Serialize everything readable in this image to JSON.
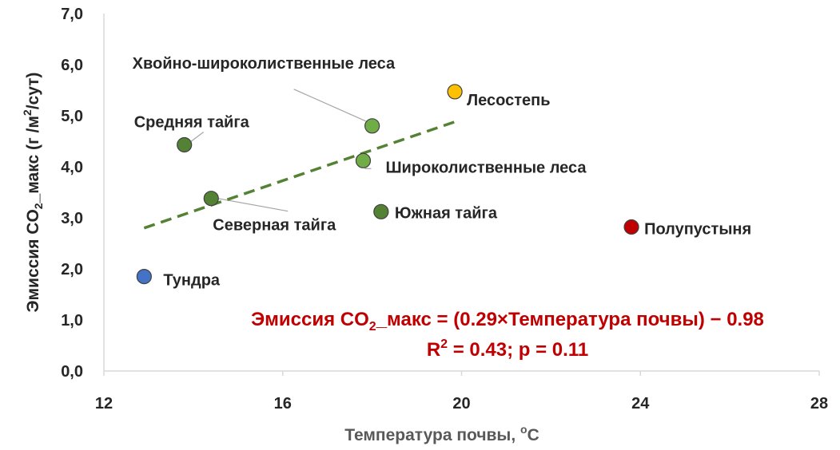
{
  "chart_data": {
    "type": "scatter",
    "xlabel_prefix": "Температура  почвы, ",
    "xlabel_unit_sup": "o",
    "xlabel_unit": "C",
    "ylabel_main": "Эмиссия CO",
    "ylabel_sub": "2",
    "ylabel_rest": "_макс  (г /м",
    "ylabel_sup": "2",
    "ylabel_end": "/сут)",
    "xlim": [
      12,
      28
    ],
    "ylim": [
      0,
      7
    ],
    "xticks": [
      12,
      16,
      20,
      24,
      28
    ],
    "yticks": [
      "0,0",
      "1,0",
      "2,0",
      "3,0",
      "4,0",
      "5,0",
      "6,0",
      "7,0"
    ],
    "grid": false,
    "points": [
      {
        "name": "Тундра",
        "x": 12.9,
        "y": 1.85,
        "color": "#4472c4"
      },
      {
        "name": "Средняя тайга",
        "x": 13.8,
        "y": 4.43,
        "color": "#548235"
      },
      {
        "name": "Северная тайга",
        "x": 14.4,
        "y": 3.38,
        "color": "#548235"
      },
      {
        "name": "Хвойно-широколиственные леса",
        "x": 18.0,
        "y": 4.8,
        "color": "#70ad47"
      },
      {
        "name": "Широколиственные леса",
        "x": 17.8,
        "y": 4.12,
        "color": "#70ad47"
      },
      {
        "name": "Южная тайга",
        "x": 18.2,
        "y": 3.12,
        "color": "#548235"
      },
      {
        "name": "Лесостепь",
        "x": 19.85,
        "y": 5.47,
        "color": "#ffc000"
      },
      {
        "name": "Полупустыня",
        "x": 23.8,
        "y": 2.82,
        "color": "#c00000"
      }
    ],
    "trendline": {
      "x": [
        12.9,
        19.85
      ],
      "y": [
        2.8,
        4.88
      ],
      "color": "#548235",
      "style": "dashed"
    },
    "equation": {
      "line1_a": "Эмиссия CO",
      "line1_sub": "2",
      "line1_b": "_макс = (0.29×Температура почвы) − 0.98",
      "line2_a": "R",
      "line2_sup": "2",
      "line2_b": " = 0.43; p = 0.11"
    }
  }
}
